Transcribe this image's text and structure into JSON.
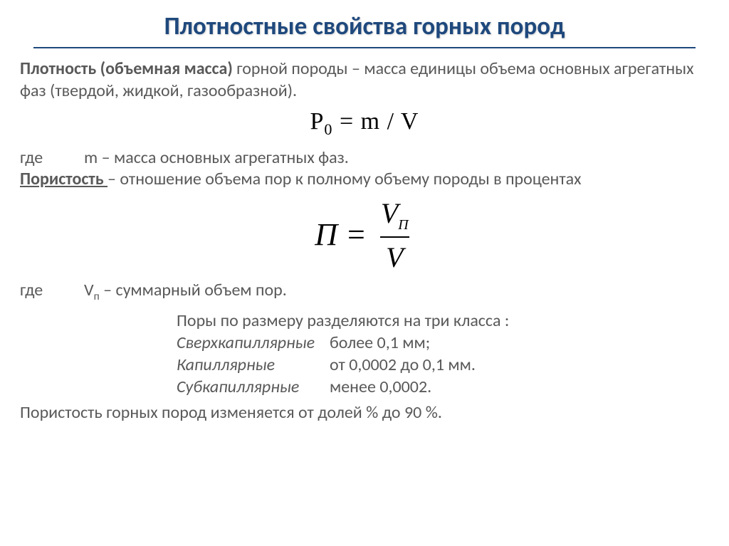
{
  "title": "Плотностные свойства горных пород",
  "para1_bold": "Плотность (объемная масса)",
  "para1_rest": " горной породы – масса единицы объема основных агрегатных фаз (твердой, жидкой, газообразной).",
  "formula1": {
    "lhs": "Ρ",
    "sub": "0",
    "rhs": " = m / V"
  },
  "where1_label": "где",
  "where1_text": "m – масса основных агрегатных фаз.",
  "porosity_bold": "Пористость ",
  "porosity_rest": "– отношение объема пор к полному объему породы в процентах",
  "formula2": {
    "lhs": "П",
    "eq": "=",
    "num_base": "V",
    "num_sub": "П",
    "den": "V"
  },
  "where2_label": "где",
  "where2_sym_base": "V",
  "where2_sym_sub": "п",
  "where2_text": " – суммарный объем пор.",
  "classes_intro": "Поры по размеру разделяются на три класса :",
  "class_rows": [
    {
      "term": "Сверхкапиллярные",
      "val": "более 0,1 мм;"
    },
    {
      "term": "Капиллярные",
      "val": "от 0,0002  до 0,1 мм."
    },
    {
      "term": "Субкапиллярные",
      "val": "менее 0,0002."
    }
  ],
  "final_line": "Пористость горных пород изменяется от долей % до 90 %.",
  "colors": {
    "title_color": "#1f497d",
    "body_color": "#595959",
    "formula_color": "#000000",
    "background": "#ffffff"
  }
}
